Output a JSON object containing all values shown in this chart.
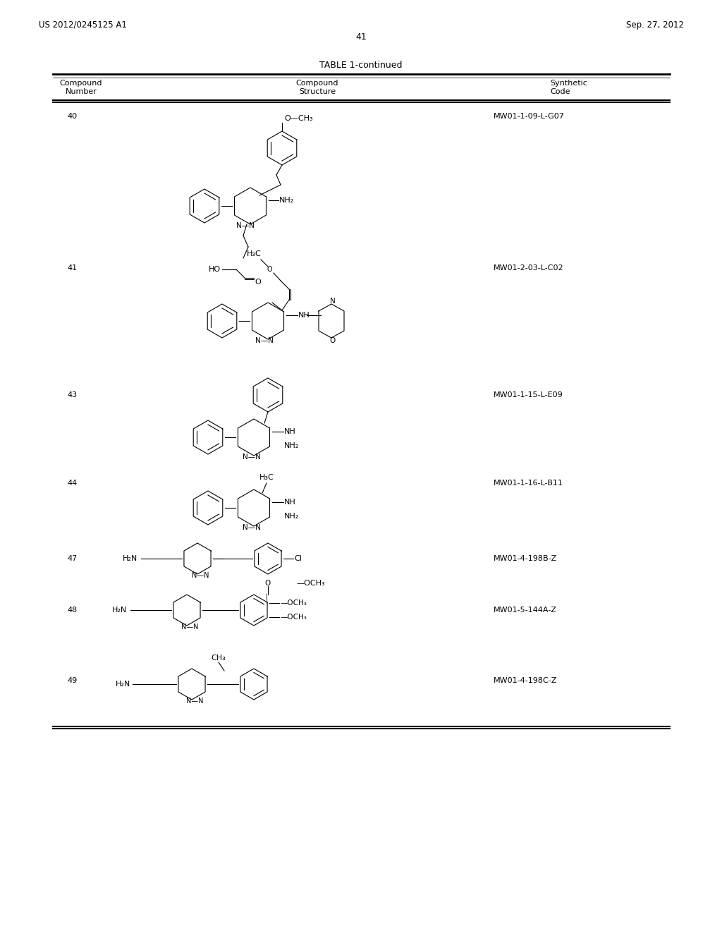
{
  "header_left": "US 2012/0245125 A1",
  "header_right": "Sep. 27, 2012",
  "page_number": "41",
  "table_title": "TABLE 1-continued",
  "col1_header": "Compound\nNumber",
  "col2_header": "Compound\nStructure",
  "col3_header": "Synthetic\nCode",
  "compounds": [
    {
      "number": "40",
      "code": "MW01-1-09-L-G07"
    },
    {
      "number": "41",
      "code": "MW01-2-03-L-C02"
    },
    {
      "number": "43",
      "code": "MW01-1-15-L-E09"
    },
    {
      "number": "44",
      "code": "MW01-1-16-L-B11"
    },
    {
      "number": "47",
      "code": "MW01-4-198B-Z"
    },
    {
      "number": "48",
      "code": "MW01-5-144A-Z"
    },
    {
      "number": "49",
      "code": "MW01-4-198C-Z"
    }
  ],
  "bg_color": "#ffffff",
  "text_color": "#000000",
  "line_color": "#000000"
}
